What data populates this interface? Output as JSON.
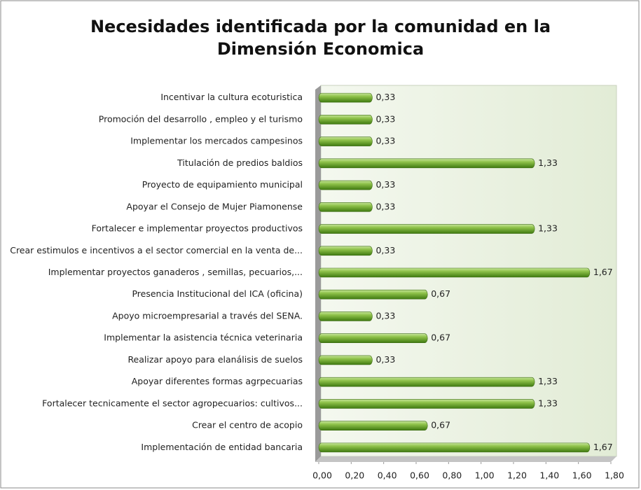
{
  "chart_data": {
    "type": "bar",
    "orientation": "horizontal",
    "title": "Necesidades identificada por la comunidad en la Dimensión Economica",
    "categories": [
      "Incentivar la cultura ecoturistica",
      "Promoción del desarrollo , empleo y el turismo",
      "Implementar los mercados campesinos",
      "Titulación de predios baldios",
      "Proyecto de equipamiento municipal",
      "Apoyar el Consejo de Mujer Piamonense",
      "Fortalecer e implementar proyectos productivos",
      "Crear estimulos e incentivos a el sector comercial en la venta de...",
      "Implementar proyectos ganaderos , semillas, pecuarios,...",
      "Presencia Institucional del ICA (oficina)",
      "Apoyo microempresarial a través del SENA.",
      "Implementar la asistencia técnica veterinaria",
      "Realizar apoyo para elanálisis de suelos",
      "Apoyar diferentes formas agrpecuarias",
      "Fortalecer tecnicamente  el sector agropecuarios: cultivos...",
      "Crear el centro de acopio",
      "Implementación  de entidad bancaria"
    ],
    "values": [
      0.33,
      0.33,
      0.33,
      1.33,
      0.33,
      0.33,
      1.33,
      0.33,
      1.67,
      0.67,
      0.33,
      0.67,
      0.33,
      1.33,
      1.33,
      0.67,
      1.67
    ],
    "value_labels": [
      "0,33",
      "0,33",
      "0,33",
      "1,33",
      "0,33",
      "0,33",
      "1,33",
      "0,33",
      "1,67",
      "0,67",
      "0,33",
      "0,67",
      "0,33",
      "1,33",
      "1,33",
      "0,67",
      "1,67"
    ],
    "color": "#6aa82a",
    "xlim": [
      0,
      1.8
    ],
    "xticks": [
      {
        "value": 0,
        "label": "0,00"
      },
      {
        "value": 0.2,
        "label": "0,20"
      },
      {
        "value": 0.4,
        "label": "0,40"
      },
      {
        "value": 0.6,
        "label": "0,60"
      },
      {
        "value": 0.8,
        "label": "0,80"
      },
      {
        "value": 1.0,
        "label": "1,00"
      },
      {
        "value": 1.2,
        "label": "1,20"
      },
      {
        "value": 1.4,
        "label": "1,40"
      },
      {
        "value": 1.6,
        "label": "1,60"
      },
      {
        "value": 1.8,
        "label": "1,80"
      }
    ]
  }
}
